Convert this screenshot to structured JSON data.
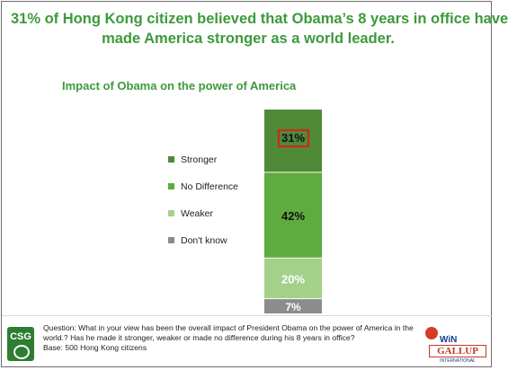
{
  "headline": {
    "line1": "31% of Hong Kong citizen believed that Obama’s 8 years in office have",
    "line2": "made America stronger as a world leader."
  },
  "chart_data": {
    "type": "bar",
    "stacked": true,
    "title": "Impact of Obama on the power of America",
    "xlabel": "",
    "ylabel": "",
    "ylim": [
      0,
      100
    ],
    "legend_position": "left",
    "series": [
      {
        "name": "Stronger",
        "values": [
          31
        ],
        "label": "31%",
        "color": "#4e8a38",
        "highlighted": true
      },
      {
        "name": "No Difference",
        "values": [
          42
        ],
        "label": "42%",
        "color": "#5eab3e"
      },
      {
        "name": "Weaker",
        "values": [
          20
        ],
        "label": "20%",
        "color": "#a3d18a"
      },
      {
        "name": "Don't know",
        "values": [
          7
        ],
        "label": "7%",
        "color": "#8c8c8c"
      }
    ],
    "highlight_color": "#e11d1d"
  },
  "footer": {
    "question_line1": "Question: What in your view has been the overall impact of President Obama on the power of America in the",
    "question_line2": "world.? Has he made it stronger, weaker or made no difference during his 8 years in office?",
    "base": "Base:  500 Hong Kong citizens",
    "csg_logo_text": "CSG",
    "win_text": "WiN",
    "gallup_text": "GALLUP",
    "gallup_sub": "INTERNATIONAL"
  }
}
